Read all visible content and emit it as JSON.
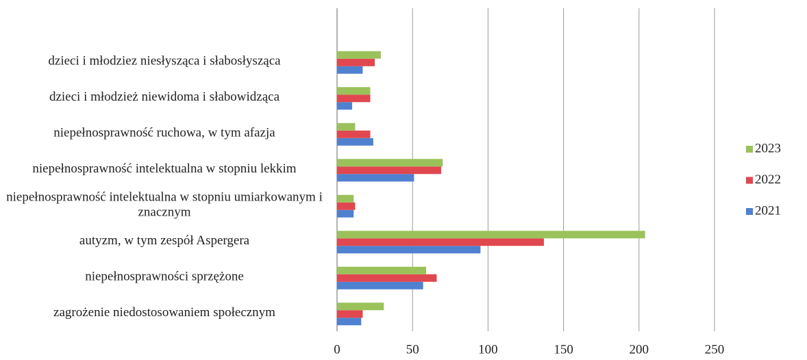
{
  "chart_data": {
    "type": "hbar",
    "categories": [
      "dzieci i młodziez niesłysząca i słabosłysząca",
      "dzieci i młodzież niewidoma i słabowidząca",
      "niepełnosprawność ruchowa, w tym afazja",
      "niepełnosprawność intelektualna w stopniu lekkim",
      "niepełnosprawność intelektualna w stopniu umiarkowanym i znacznym",
      "autyzm, w tym zespół Aspergera",
      "niepełnosprawności sprzężone",
      "zagrożenie niedostosowaniem społecznym"
    ],
    "series": [
      {
        "name": "2021",
        "color": "#4f81d0",
        "values": [
          17,
          10,
          24,
          51,
          11,
          95,
          57,
          16
        ]
      },
      {
        "name": "2022",
        "color": "#e0474f",
        "values": [
          25,
          22,
          22,
          69,
          12,
          137,
          66,
          17
        ]
      },
      {
        "name": "2023",
        "color": "#9bc25a",
        "values": [
          29,
          22,
          12,
          70,
          11,
          204,
          59,
          31
        ]
      }
    ],
    "xlim": [
      0,
      250
    ],
    "xticks": [
      0,
      50,
      100,
      150,
      200,
      250
    ],
    "grid": true,
    "legend": "right"
  }
}
